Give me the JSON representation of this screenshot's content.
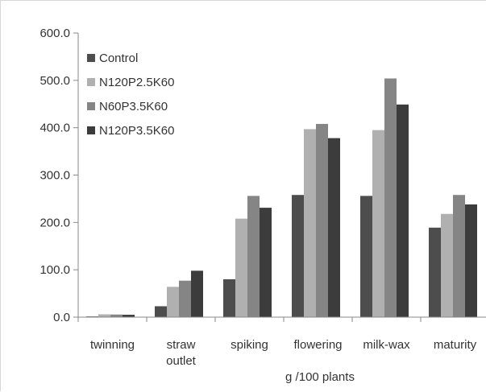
{
  "chart_data": {
    "type": "bar",
    "categories": [
      "twinning",
      "straw outlet",
      "spiking",
      "flowering",
      "milk-wax",
      "maturity"
    ],
    "category_lines": [
      [
        "twinning"
      ],
      [
        "straw",
        "outlet"
      ],
      [
        "spiking"
      ],
      [
        "flowering"
      ],
      [
        "milk-wax"
      ],
      [
        "maturity"
      ]
    ],
    "series": [
      {
        "name": "Control",
        "color": "#4d4d4d",
        "values": [
          1.5,
          23,
          80,
          258,
          256,
          189
        ]
      },
      {
        "name": "N120P2.5K60",
        "color": "#b0b0b0",
        "values": [
          6,
          64,
          208,
          397,
          395,
          218
        ]
      },
      {
        "name": "N60P3.5K60",
        "color": "#858585",
        "values": [
          5.5,
          77,
          256,
          408,
          504,
          258
        ]
      },
      {
        "name": "N120P3.5K60",
        "color": "#3c3c3c",
        "values": [
          5,
          98,
          231,
          378,
          449,
          238
        ]
      }
    ],
    "yticks": [
      "0.0",
      "100.0",
      "200.0",
      "300.0",
      "400.0",
      "500.0",
      "600.0"
    ],
    "ylim": [
      0,
      600
    ],
    "xlabel": "g /100 plants",
    "ylabel": "",
    "title": "",
    "grid": false,
    "legend_position": "top-left"
  }
}
